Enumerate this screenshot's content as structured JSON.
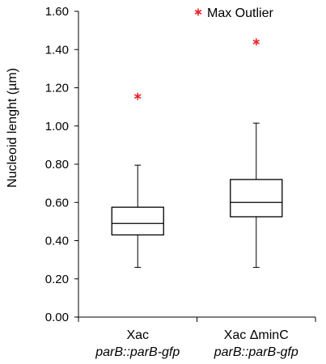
{
  "chart_data": {
    "type": "box",
    "ylabel": "Nucleoid lenght (µm)",
    "ylim": [
      0.0,
      1.6
    ],
    "yticks": [
      0.0,
      0.2,
      0.4,
      0.6,
      0.8,
      1.0,
      1.2,
      1.4,
      1.6
    ],
    "ytick_labels": [
      "0.00",
      "0.20",
      "0.40",
      "0.60",
      "0.80",
      "1.00",
      "1.20",
      "1.40",
      "1.60"
    ],
    "categories": [
      {
        "line1": "Xac",
        "line2": "parB::parB-gfp"
      },
      {
        "line1": "Xac ΔminC",
        "line2": "parB::parB-gfp"
      }
    ],
    "boxes": [
      {
        "whisker_low": 0.26,
        "q1": 0.43,
        "median": 0.49,
        "q3": 0.575,
        "whisker_high": 0.795,
        "max_outlier": 1.155
      },
      {
        "whisker_low": 0.26,
        "q1": 0.525,
        "median": 0.6,
        "q3": 0.72,
        "whisker_high": 1.015,
        "max_outlier": 1.44
      }
    ],
    "legend": {
      "label": "Max Outlier",
      "marker": "asterisk",
      "color": "#e8232a",
      "position": "top-right"
    },
    "grid": false
  }
}
